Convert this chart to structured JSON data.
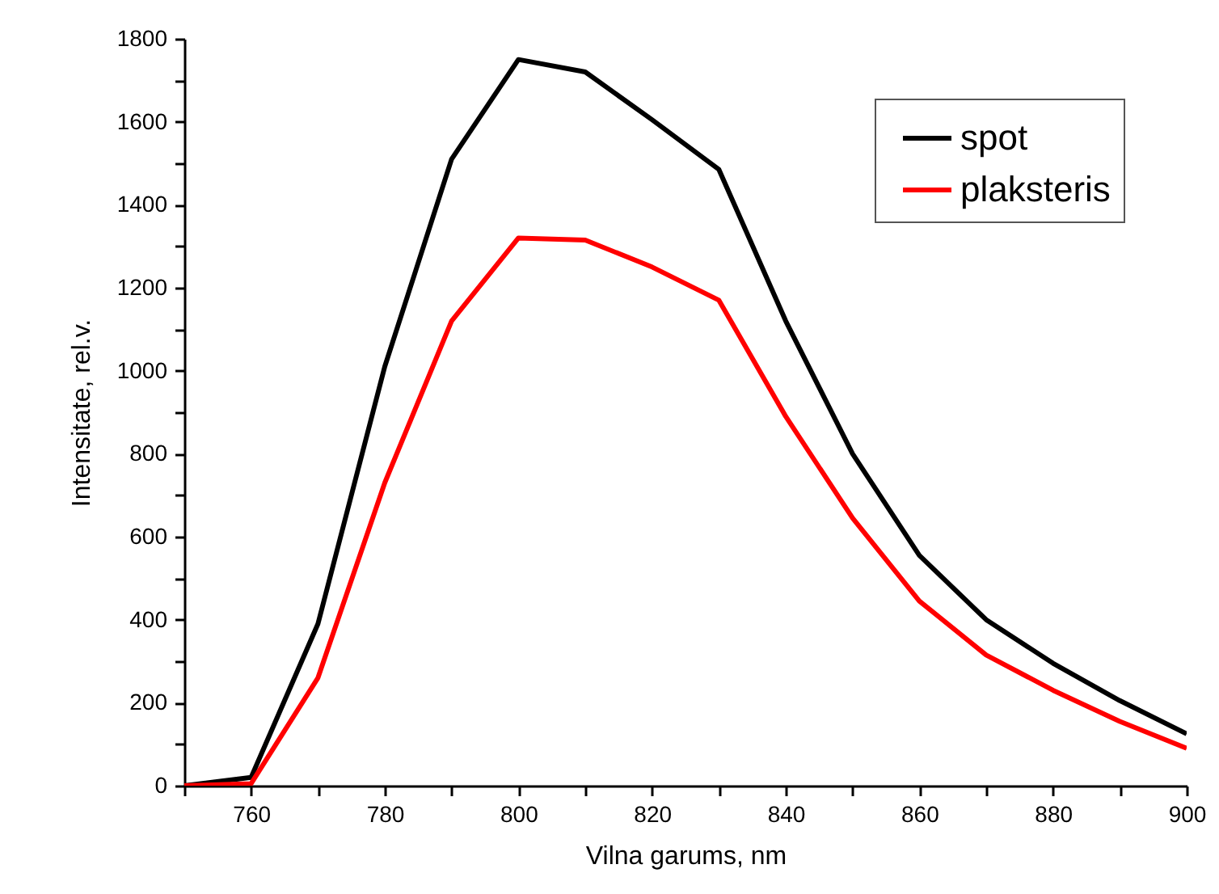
{
  "chart_data": {
    "type": "line",
    "xlabel": "Vilna garums, nm",
    "ylabel": "Intensitate, rel.v.",
    "x": [
      750,
      760,
      770,
      780,
      790,
      800,
      810,
      820,
      830,
      840,
      850,
      860,
      870,
      880,
      890,
      900
    ],
    "series": [
      {
        "name": "spot",
        "color": "#000000",
        "values": [
          0,
          20,
          390,
          1010,
          1510,
          1750,
          1720,
          1605,
          1485,
          1120,
          800,
          555,
          400,
          295,
          205,
          125
        ]
      },
      {
        "name": "plaksteris",
        "color": "#ff0000",
        "values": [
          0,
          5,
          260,
          730,
          1120,
          1320,
          1315,
          1250,
          1170,
          890,
          645,
          445,
          315,
          230,
          155,
          90
        ]
      }
    ],
    "xlim": [
      750,
      900
    ],
    "xticks": [
      {
        "value": 750,
        "label": null
      },
      760,
      {
        "value": 770,
        "label": null
      },
      780,
      {
        "value": 790,
        "label": null
      },
      800,
      {
        "value": 810,
        "label": null
      },
      820,
      {
        "value": 830,
        "label": null
      },
      840,
      {
        "value": 850,
        "label": null
      },
      860,
      {
        "value": 870,
        "label": null
      },
      880,
      {
        "value": 890,
        "label": null
      },
      900
    ],
    "ylim": [
      0,
      1800
    ],
    "yticks": [
      0,
      {
        "value": 100,
        "label": null
      },
      200,
      {
        "value": 300,
        "label": null
      },
      400,
      {
        "value": 500,
        "label": null
      },
      600,
      {
        "value": 700,
        "label": null
      },
      800,
      {
        "value": 900,
        "label": null
      },
      1000,
      {
        "value": 1100,
        "label": null
      },
      1200,
      {
        "value": 1300,
        "label": null
      },
      1400,
      {
        "value": 1500,
        "label": null
      },
      1600,
      {
        "value": 1700,
        "label": null
      },
      1800
    ],
    "grid": false,
    "legend": "top right",
    "marker": "none",
    "line_style": "solid"
  }
}
